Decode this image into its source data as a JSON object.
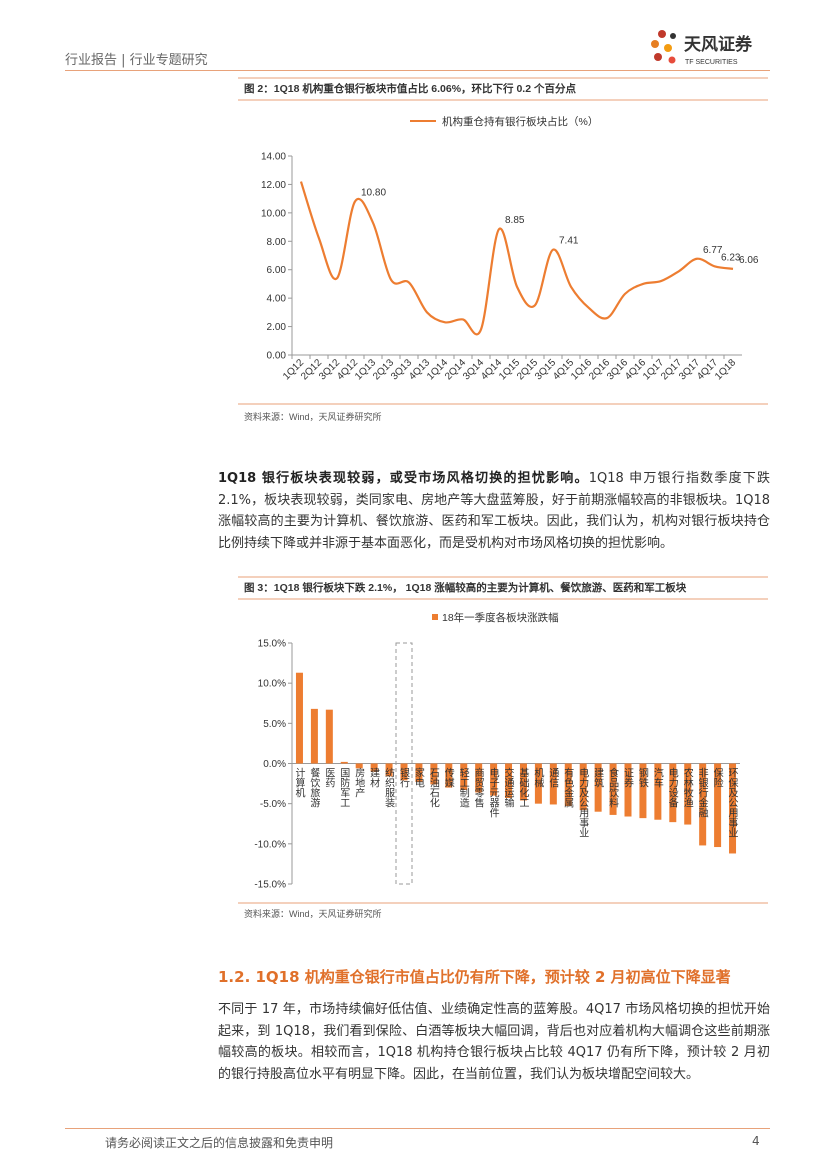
{
  "header": {
    "left": "行业报告 | 行业专题研究",
    "logo_cn": "天风证券",
    "logo_en": "TF SECURITIES"
  },
  "chart_data": [
    {
      "type": "line",
      "title": "图 2：1Q18 机构重仓银行板块市值占比 6.06%，环比下行 0.2 个百分点",
      "categories": [
        "1Q12",
        "2Q12",
        "3Q12",
        "4Q12",
        "1Q13",
        "2Q13",
        "3Q13",
        "4Q13",
        "1Q14",
        "2Q14",
        "3Q14",
        "4Q14",
        "1Q15",
        "2Q15",
        "3Q15",
        "4Q15",
        "1Q16",
        "2Q16",
        "3Q16",
        "4Q16",
        "1Q17",
        "2Q17",
        "3Q17",
        "4Q17",
        "1Q18"
      ],
      "series": [
        {
          "name": "机构重仓持有银行板块占比（%）",
          "color": "#ED7D31",
          "values": [
            12.2,
            8.2,
            5.4,
            10.8,
            9.3,
            5.3,
            5.1,
            3.0,
            2.3,
            2.5,
            1.8,
            8.85,
            4.8,
            3.5,
            7.41,
            4.8,
            3.3,
            2.6,
            4.3,
            5.0,
            5.2,
            5.9,
            6.77,
            6.23,
            6.06
          ],
          "value_labels": [
            null,
            null,
            null,
            "10.80",
            null,
            null,
            null,
            null,
            null,
            null,
            null,
            "8.85",
            null,
            null,
            "7.41",
            null,
            null,
            null,
            null,
            null,
            null,
            null,
            "6.77",
            "6.23",
            "6.06"
          ]
        }
      ],
      "ylim": [
        0,
        14
      ],
      "yticks": [
        {
          "value": 0,
          "label": "0.00"
        },
        {
          "value": 2,
          "label": "2.00"
        },
        {
          "value": 4,
          "label": "4.00"
        },
        {
          "value": 6,
          "label": "6.00"
        },
        {
          "value": 8,
          "label": "8.00"
        },
        {
          "value": 10,
          "label": "10.00"
        },
        {
          "value": 12,
          "label": "12.00"
        },
        {
          "value": 14,
          "label": "14.00"
        }
      ],
      "source": "资料来源：Wind，天风证券研究所"
    },
    {
      "type": "bar",
      "title": "图 3：1Q18 银行板块下跌 2.1%， 1Q18 涨幅较高的主要为计算机、餐饮旅游、医药和军工板块",
      "categories": [
        "计算机",
        "餐饮旅游",
        "医药",
        "国防军工",
        "房地产",
        "建材",
        "纺织服装",
        "银行",
        "家电",
        "石油石化",
        "传媒",
        "轻工制造",
        "商贸零售",
        "电子元器件",
        "交通运输",
        "基础化工",
        "机械",
        "通信",
        "有色金属",
        "电力及公用事业",
        "建筑",
        "食品饮料",
        "证券",
        "钢铁",
        "汽车",
        "电力设备",
        "农林牧渔",
        "非银行金融",
        "保险",
        "环保及公用事业"
      ],
      "series": [
        {
          "name": "18年一季度各板块涨跌幅",
          "color": "#ED7D31",
          "values": [
            11.3,
            6.8,
            6.7,
            0.2,
            -0.6,
            -1.0,
            -1.6,
            -2.1,
            -2.3,
            -2.6,
            -3.0,
            -3.3,
            -3.6,
            -4.0,
            -4.3,
            -4.6,
            -5.0,
            -5.1,
            -5.3,
            -5.8,
            -6.0,
            -6.4,
            -6.6,
            -6.8,
            -7.0,
            -7.3,
            -7.6,
            -10.2,
            -10.4,
            -11.2
          ]
        }
      ],
      "ylim": [
        -15,
        15
      ],
      "yticks": [
        {
          "value": -15,
          "label": "-15.0%"
        },
        {
          "value": -10,
          "label": "-10.0%"
        },
        {
          "value": -5,
          "label": "-5.0%"
        },
        {
          "value": 0,
          "label": "0.0%"
        },
        {
          "value": 5,
          "label": "5.0%"
        },
        {
          "value": 10,
          "label": "10.0%"
        },
        {
          "value": 15,
          "label": "15.0%"
        }
      ],
      "source": "资料来源：Wind，天风证券研究所"
    }
  ],
  "paragraphs": [
    {
      "lead": "1Q18 银行板块表现较弱，或受市场风格切换的担忧影响。",
      "text": "1Q18 申万银行指数季度下跌 2.1%，板块表现较弱，类同家电、房地产等大盘蓝筹股，好于前期涨幅较高的非银板块。1Q18 涨幅较高的主要为计算机、餐饮旅游、医药和军工板块。因此，我们认为，机构对银行板块持仓比例持续下降或并非源于基本面恶化，而是受机构对市场风格切换的担忧影响。"
    },
    {
      "text": "不同于 17 年，市场持续偏好低估值、业绩确定性高的蓝筹股。4Q17 市场风格切换的担忧开始起来，到 1Q18，我们看到保险、白酒等板块大幅回调，背后也对应着机构大幅调仓这些前期涨幅较高的板块。相较而言，1Q18 机构持仓银行板块占比较 4Q17 仍有所下降，预计较 2 月初的银行持股高位水平有明显下降。因此，在当前位置，我们认为板块增配空间较大。"
    }
  ],
  "section_heading": "1.2. 1Q18 机构重仓银行市值占比仍有所下降，预计较 2 月初高位下降显著",
  "footer": {
    "disclaimer": "请务必阅读正文之后的信息披露和免责申明",
    "page": "4"
  }
}
